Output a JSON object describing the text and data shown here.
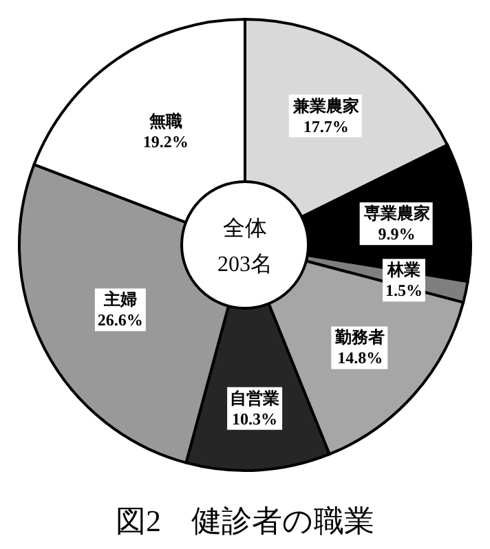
{
  "chart_data": {
    "type": "donut",
    "title": "図2　健診者の職業",
    "categories": [
      "兼業農家",
      "専業農家",
      "林業",
      "勤務者",
      "自営業",
      "主婦",
      "無職"
    ],
    "values": [
      17.7,
      9.9,
      1.5,
      14.8,
      10.3,
      26.6,
      19.2
    ],
    "value_labels": [
      "17.7%",
      "9.9%",
      "1.5%",
      "14.8%",
      "10.3%",
      "26.6%",
      "19.2%"
    ],
    "colors": [
      "#d9d9d9",
      "#000000",
      "#7f7f7f",
      "#a6a6a6",
      "#262626",
      "#999999",
      "#ffffff"
    ],
    "annotations": [
      "全体",
      "203名"
    ]
  }
}
